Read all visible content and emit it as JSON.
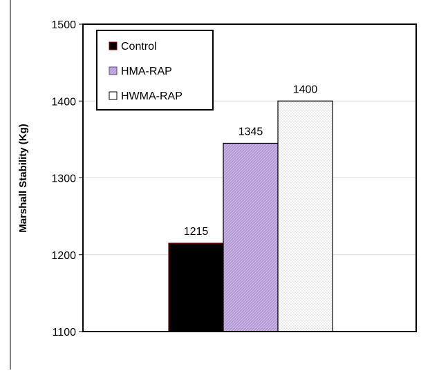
{
  "chart_data": {
    "type": "bar",
    "categories": [
      "Control",
      "HMA-RAP",
      "HWMA-RAP"
    ],
    "values": [
      1215,
      1345,
      1400
    ],
    "data_labels": [
      "1215",
      "1345",
      "1400"
    ],
    "ylabel": "Marshall Stability (Kg)",
    "xlabel": "",
    "ylim": [
      1100,
      1500
    ],
    "yticks": [
      "1100",
      "1200",
      "1300",
      "1400",
      "1500"
    ],
    "grid": "horizontal",
    "legend": {
      "position": "top-left",
      "entries": [
        "Control",
        "HMA-RAP",
        "HWMA-RAP"
      ]
    },
    "colors": {
      "Control": "#000000",
      "Control_edge": "#8b0000",
      "HMA-RAP": "#b59ad6",
      "HWMA-RAP": "#f7f7f2"
    }
  }
}
